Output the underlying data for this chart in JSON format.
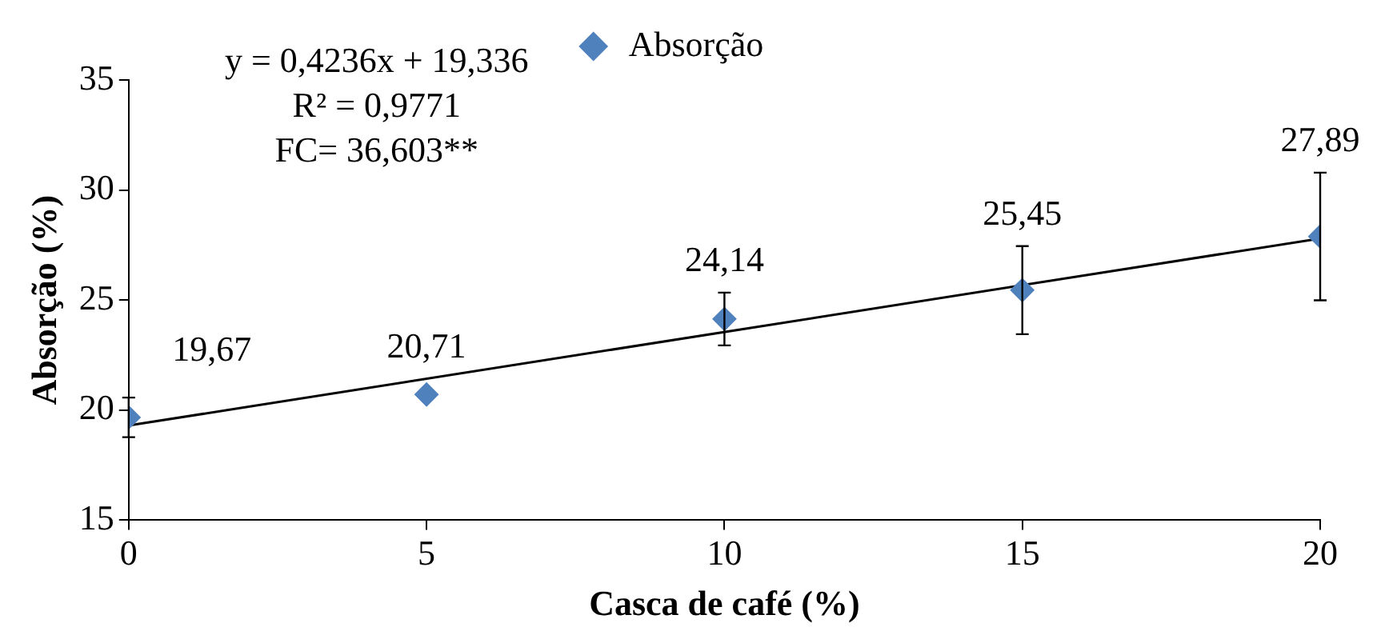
{
  "chart_data": {
    "type": "scatter",
    "xlabel": "Casca de café (%)",
    "ylabel": "Absorção (%)",
    "x": [
      0,
      5,
      10,
      15,
      20
    ],
    "series": [
      {
        "name": "Absorção",
        "color": "#4f81bd",
        "values": [
          19.67,
          20.71,
          24.14,
          25.45,
          27.89
        ],
        "value_labels": [
          "19,67",
          "20,71",
          "24,14",
          "25,45",
          "27,89"
        ],
        "errors": [
          0.9,
          null,
          1.2,
          2.0,
          2.9
        ],
        "marker": "diamond"
      },
      {
        "type": "line",
        "color": "#000000",
        "x": [
          0,
          20
        ],
        "values": [
          19.3,
          27.8
        ],
        "marker": "none"
      }
    ],
    "annotations": [
      "y = 0,4236x + 19,336",
      "R² = 0,9771",
      "FC= 36,603**"
    ],
    "xlim": [
      0,
      20
    ],
    "xticks": [
      0,
      5,
      10,
      15,
      20
    ],
    "ylim": [
      15,
      35
    ],
    "yticks": [
      15,
      20,
      25,
      30,
      35
    ],
    "grid": false,
    "legend": "top"
  }
}
